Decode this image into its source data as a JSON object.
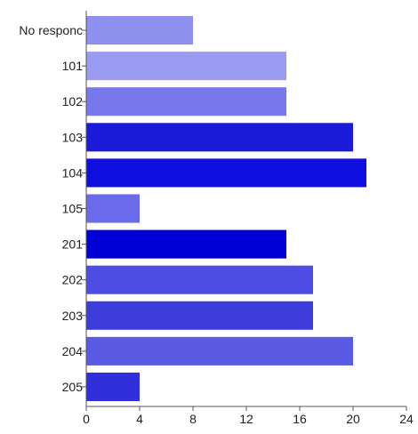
{
  "chart_data": {
    "type": "bar",
    "orientation": "horizontal",
    "categories": [
      "No responc",
      "101",
      "102",
      "103",
      "104",
      "105",
      "201",
      "202",
      "203",
      "204",
      "205"
    ],
    "values": [
      8,
      15,
      15,
      20,
      21,
      4,
      15,
      17,
      17,
      20,
      4
    ],
    "bar_colors": [
      "#8f8ff0",
      "#9b9bf2",
      "#7878ec",
      "#1a1ad8",
      "#0f0fe0",
      "#6a6aea",
      "#0000d6",
      "#4d4de6",
      "#3d3ddc",
      "#5a5ae4",
      "#2f2fdb"
    ],
    "xlim": [
      0,
      24
    ],
    "x_ticks": [
      0,
      4,
      8,
      12,
      16,
      20,
      24
    ],
    "grid": false,
    "legend": "none"
  }
}
